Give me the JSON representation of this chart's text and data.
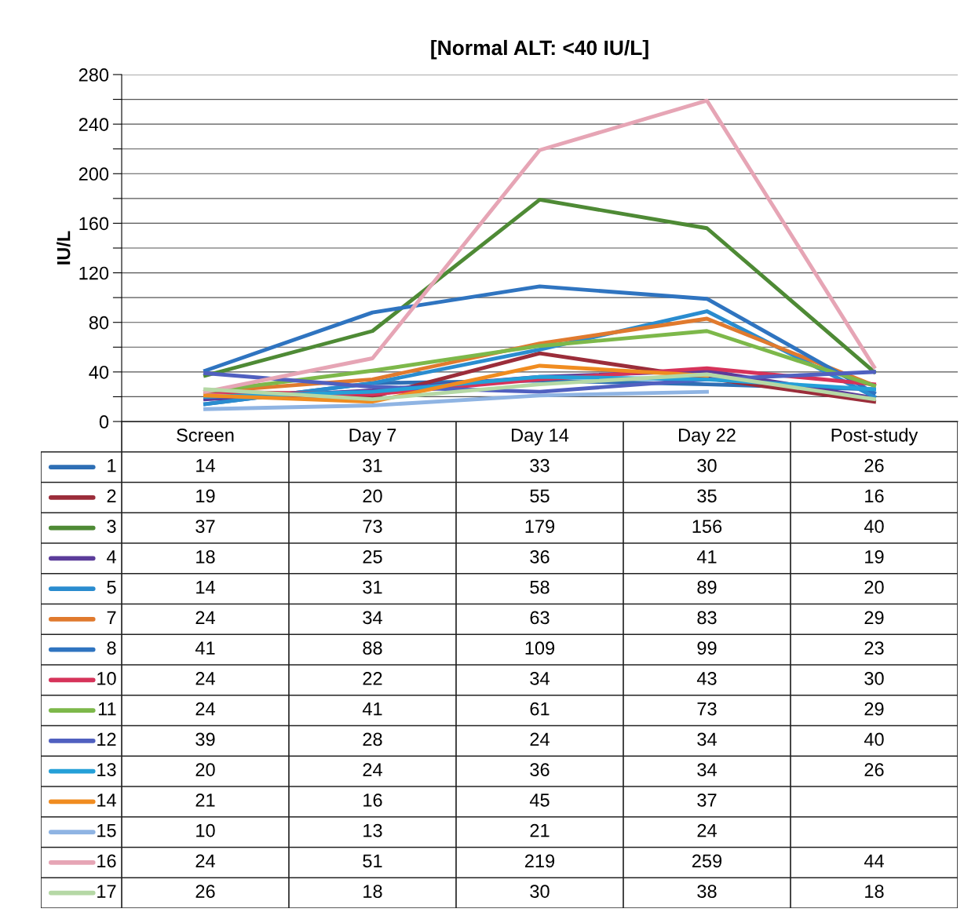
{
  "chart_data": {
    "type": "line",
    "title": "[Normal ALT: <40 IU/L]",
    "ylabel": "IU/L",
    "categories": [
      "Screen",
      "Day 7",
      "Day 14",
      "Day 22",
      "Post-study"
    ],
    "ylim": [
      0,
      280
    ],
    "yticks": [
      0,
      {
        "value": 20,
        "label": null
      },
      40,
      {
        "value": 60,
        "label": null
      },
      80,
      {
        "value": 100,
        "label": null
      },
      120,
      {
        "value": 140,
        "label": null
      },
      160,
      {
        "value": 180,
        "label": null
      },
      200,
      {
        "value": 220,
        "label": null
      },
      240,
      {
        "value": 260,
        "label": null
      },
      280
    ],
    "grid": "y",
    "legend": "bottom left",
    "tick_labels": "y",
    "data_labels": true,
    "marker": "none",
    "line_style": "solid",
    "series": [
      {
        "name": "1",
        "color": "#2e6fb5",
        "values": [
          14,
          31,
          33,
          30,
          26
        ]
      },
      {
        "name": "2",
        "color": "#9b2d3a",
        "values": [
          19,
          20,
          55,
          35,
          16
        ]
      },
      {
        "name": "3",
        "color": "#4e8a35",
        "values": [
          37,
          73,
          179,
          156,
          40
        ]
      },
      {
        "name": "4",
        "color": "#5b3c9a",
        "values": [
          18,
          25,
          36,
          41,
          19
        ]
      },
      {
        "name": "5",
        "color": "#2a8ccf",
        "values": [
          14,
          31,
          58,
          89,
          20
        ]
      },
      {
        "name": "7",
        "color": "#e07a2e",
        "values": [
          24,
          34,
          63,
          83,
          29
        ]
      },
      {
        "name": "8",
        "color": "#2f74c0",
        "values": [
          41,
          88,
          109,
          99,
          23
        ]
      },
      {
        "name": "10",
        "color": "#d6335a",
        "values": [
          24,
          22,
          34,
          43,
          30
        ]
      },
      {
        "name": "11",
        "color": "#7db84a",
        "values": [
          24,
          41,
          61,
          73,
          29
        ]
      },
      {
        "name": "12",
        "color": "#5060c0",
        "values": [
          39,
          28,
          24,
          34,
          40
        ]
      },
      {
        "name": "13",
        "color": "#25a0d8",
        "values": [
          20,
          24,
          36,
          34,
          26
        ]
      },
      {
        "name": "14",
        "color": "#f08c20",
        "values": [
          21,
          16,
          45,
          37,
          null
        ]
      },
      {
        "name": "15",
        "color": "#8fb4e3",
        "values": [
          10,
          13,
          21,
          24,
          null
        ]
      },
      {
        "name": "16",
        "color": "#e6a5b5",
        "values": [
          24,
          51,
          219,
          259,
          44
        ]
      },
      {
        "name": "17",
        "color": "#b5d8a5",
        "values": [
          26,
          18,
          30,
          38,
          18
        ]
      }
    ]
  }
}
